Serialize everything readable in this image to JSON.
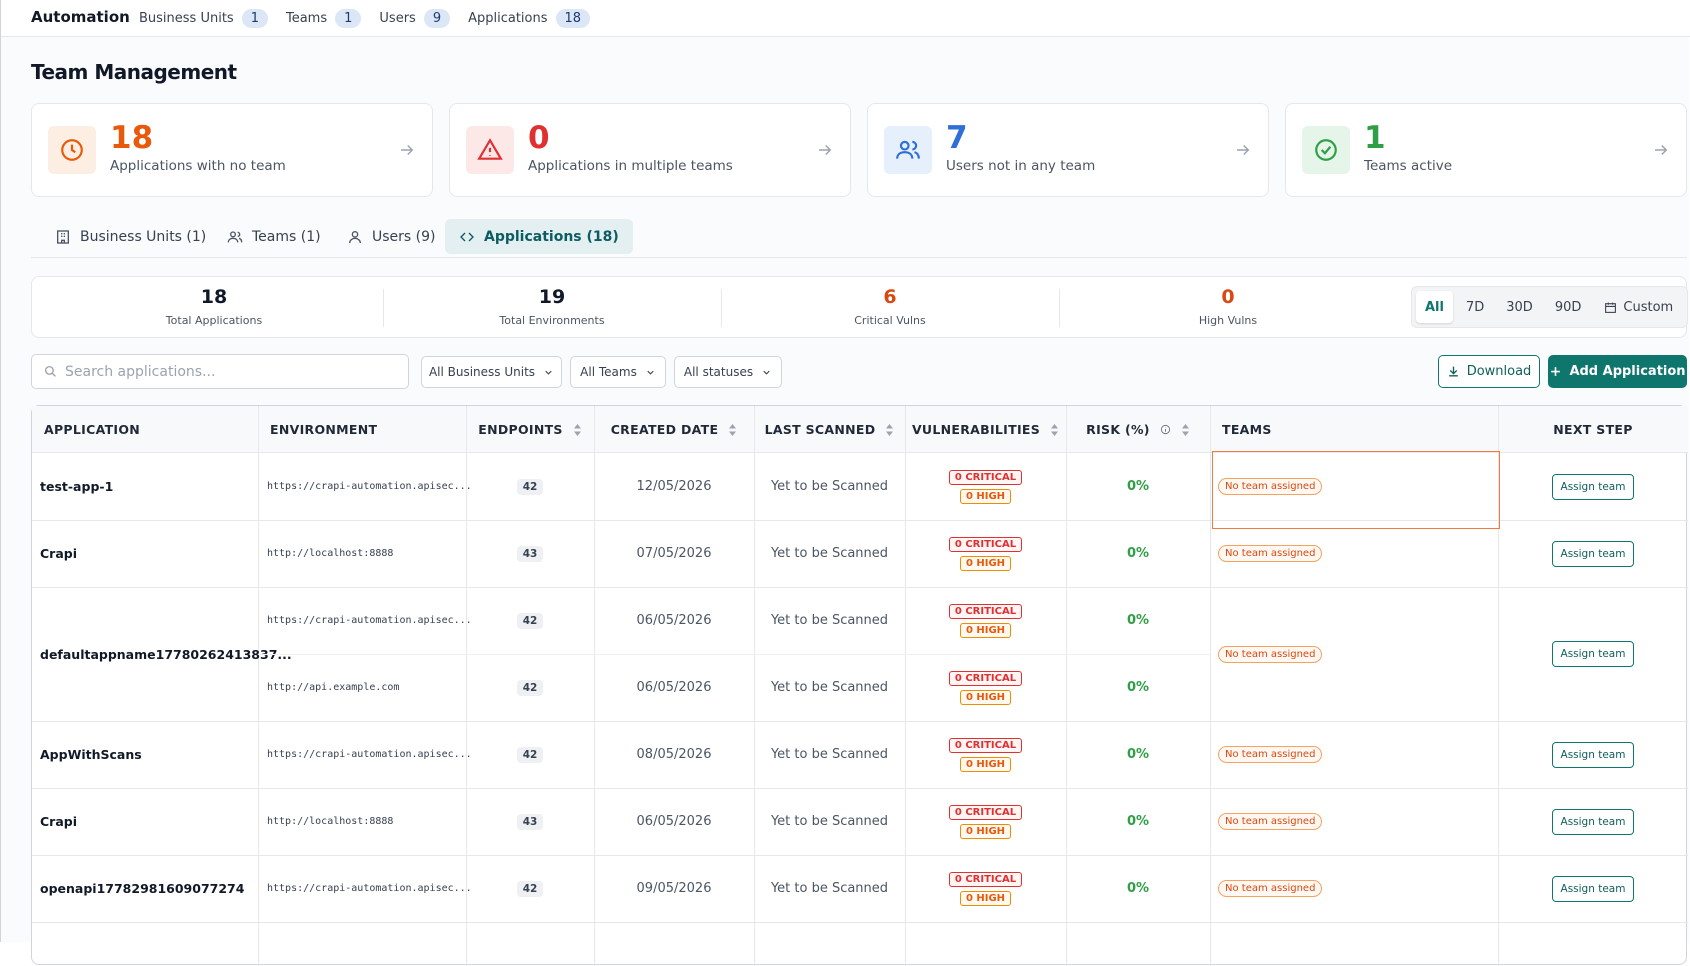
{
  "nav": {
    "brand": "Automation",
    "tabs": [
      {
        "label": "Business Units",
        "count": "1"
      },
      {
        "label": "Teams",
        "count": "1"
      },
      {
        "label": "Users",
        "count": "9"
      },
      {
        "label": "Applications",
        "count": "18"
      }
    ]
  },
  "page_title": "Team Management",
  "cards": [
    {
      "value": "18",
      "label": "Applications with no team"
    },
    {
      "value": "0",
      "label": "Applications in multiple teams"
    },
    {
      "value": "7",
      "label": "Users not in any team"
    },
    {
      "value": "1",
      "label": "Teams active"
    }
  ],
  "tabs": [
    "Business Units (1)",
    "Teams (1)",
    "Users (9)",
    "Applications (18)"
  ],
  "stats": [
    {
      "value": "18",
      "label": "Total Applications"
    },
    {
      "value": "19",
      "label": "Total Environments"
    },
    {
      "value": "6",
      "label": "Critical Vulns"
    },
    {
      "value": "0",
      "label": "High Vulns"
    }
  ],
  "time_filters": [
    "All",
    "7D",
    "30D",
    "90D",
    "Custom"
  ],
  "search_placeholder": "Search applications...",
  "filters": [
    "All Business Units",
    "All Teams",
    "All statuses"
  ],
  "buttons": {
    "download": "Download",
    "add": "Add Application"
  },
  "table": {
    "columns": [
      "APPLICATION",
      "ENVIRONMENT",
      "ENDPOINTS",
      "CREATED DATE",
      "LAST SCANNED",
      "VULNERABILITIES",
      "RISK (%)",
      "TEAMS",
      "NEXT STEP"
    ],
    "rows": [
      {
        "application": "test-app-1",
        "environments": [
          {
            "url": "https://crapi-automation.apisec...",
            "endpoints": "42",
            "created": "12/05/2026",
            "last_scanned": "Yet to be Scanned",
            "critical": "0 CRITICAL",
            "high": "0 HIGH",
            "risk": "0%"
          }
        ],
        "teams": "No team assigned",
        "next_step": "Assign team"
      },
      {
        "application": "Crapi",
        "environments": [
          {
            "url": "http://localhost:8888",
            "endpoints": "43",
            "created": "07/05/2026",
            "last_scanned": "Yet to be Scanned",
            "critical": "0 CRITICAL",
            "high": "0 HIGH",
            "risk": "0%"
          }
        ],
        "teams": "No team assigned",
        "next_step": "Assign team"
      },
      {
        "application": "defaultappname17780262413837...",
        "environments": [
          {
            "url": "https://crapi-automation.apisec...",
            "endpoints": "42",
            "created": "06/05/2026",
            "last_scanned": "Yet to be Scanned",
            "critical": "0 CRITICAL",
            "high": "0 HIGH",
            "risk": "0%"
          },
          {
            "url": "http://api.example.com",
            "endpoints": "42",
            "created": "06/05/2026",
            "last_scanned": "Yet to be Scanned",
            "critical": "0 CRITICAL",
            "high": "0 HIGH",
            "risk": "0%"
          }
        ],
        "teams": "No team assigned",
        "next_step": "Assign team"
      },
      {
        "application": "AppWithScans",
        "environments": [
          {
            "url": "https://crapi-automation.apisec...",
            "endpoints": "42",
            "created": "08/05/2026",
            "last_scanned": "Yet to be Scanned",
            "critical": "0 CRITICAL",
            "high": "0 HIGH",
            "risk": "0%"
          }
        ],
        "teams": "No team assigned",
        "next_step": "Assign team"
      },
      {
        "application": "Crapi",
        "environments": [
          {
            "url": "http://localhost:8888",
            "endpoints": "43",
            "created": "06/05/2026",
            "last_scanned": "Yet to be Scanned",
            "critical": "0 CRITICAL",
            "high": "0 HIGH",
            "risk": "0%"
          }
        ],
        "teams": "No team assigned",
        "next_step": "Assign team"
      },
      {
        "application": "openapi17782981609077274",
        "environments": [
          {
            "url": "https://crapi-automation.apisec...",
            "endpoints": "42",
            "created": "09/05/2026",
            "last_scanned": "Yet to be Scanned",
            "critical": "0 CRITICAL",
            "high": "0 HIGH",
            "risk": "0%"
          }
        ],
        "teams": "No team assigned",
        "next_step": "Assign team"
      }
    ]
  }
}
